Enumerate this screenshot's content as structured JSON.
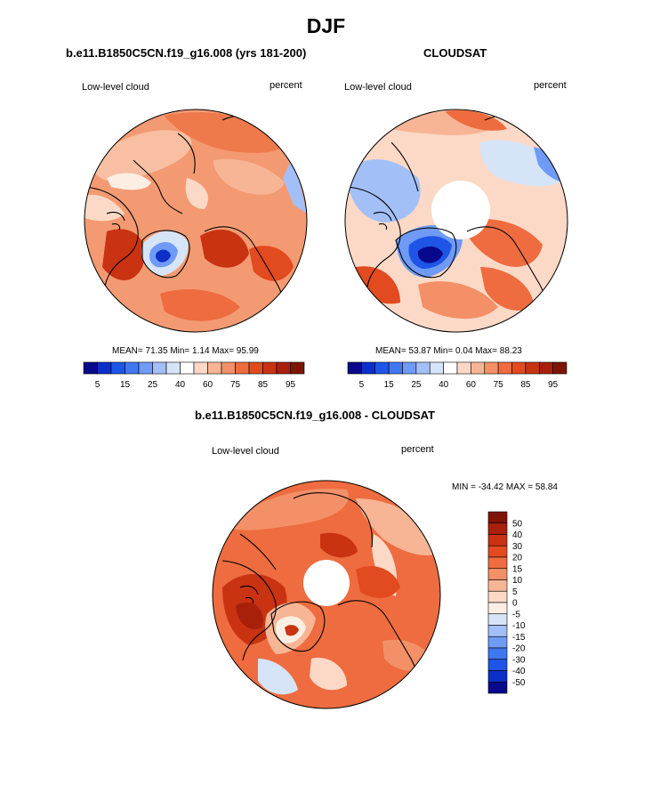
{
  "figure": {
    "title": "DJF"
  },
  "panels": {
    "left": {
      "title": "b.e11.B1850C5CN.f19_g16.008 (yrs 181-200)",
      "variable": "Low-level cloud",
      "units": "percent",
      "stats": "MEAN=  71.35  Min=    1.14  Max=  95.99"
    },
    "right": {
      "title": "CLOUDSAT",
      "variable": "Low-level cloud",
      "units": "percent",
      "stats": "MEAN=  53.87  Min=    0.04  Max=  88.23"
    },
    "diff": {
      "title": "b.e11.B1850C5CN.f19_g16.008 - CLOUDSAT",
      "variable": "Low-level cloud",
      "units": "percent",
      "stats": "MIN = -34.42 MAX =  58.84"
    }
  },
  "colorbar_abs": {
    "colors": [
      "#08088c",
      "#0c2fc8",
      "#1f55e6",
      "#3f77f0",
      "#6f9af5",
      "#a3bff7",
      "#d6e4f8",
      "#ffffff",
      "#fbd9c6",
      "#f7b596",
      "#f39067",
      "#ee6c3f",
      "#e24a1f",
      "#c93312",
      "#a8200a",
      "#7d1406"
    ],
    "tick_labels": [
      "5",
      "15",
      "25",
      "40",
      "60",
      "75",
      "85",
      "95"
    ]
  },
  "colorbar_diff": {
    "colors": [
      "#7d1406",
      "#a8200a",
      "#c93312",
      "#e24a1f",
      "#ee6c3f",
      "#f39067",
      "#f7b596",
      "#fbd9c6",
      "#fdeee4",
      "#d6e4f8",
      "#a3bff7",
      "#6f9af5",
      "#3f77f0",
      "#1f55e6",
      "#0c2fc8",
      "#08088c"
    ],
    "tick_labels": [
      "50",
      "40",
      "30",
      "20",
      "15",
      "10",
      "5",
      "0",
      "-5",
      "-10",
      "-15",
      "-20",
      "-30",
      "-40",
      "-50"
    ]
  }
}
